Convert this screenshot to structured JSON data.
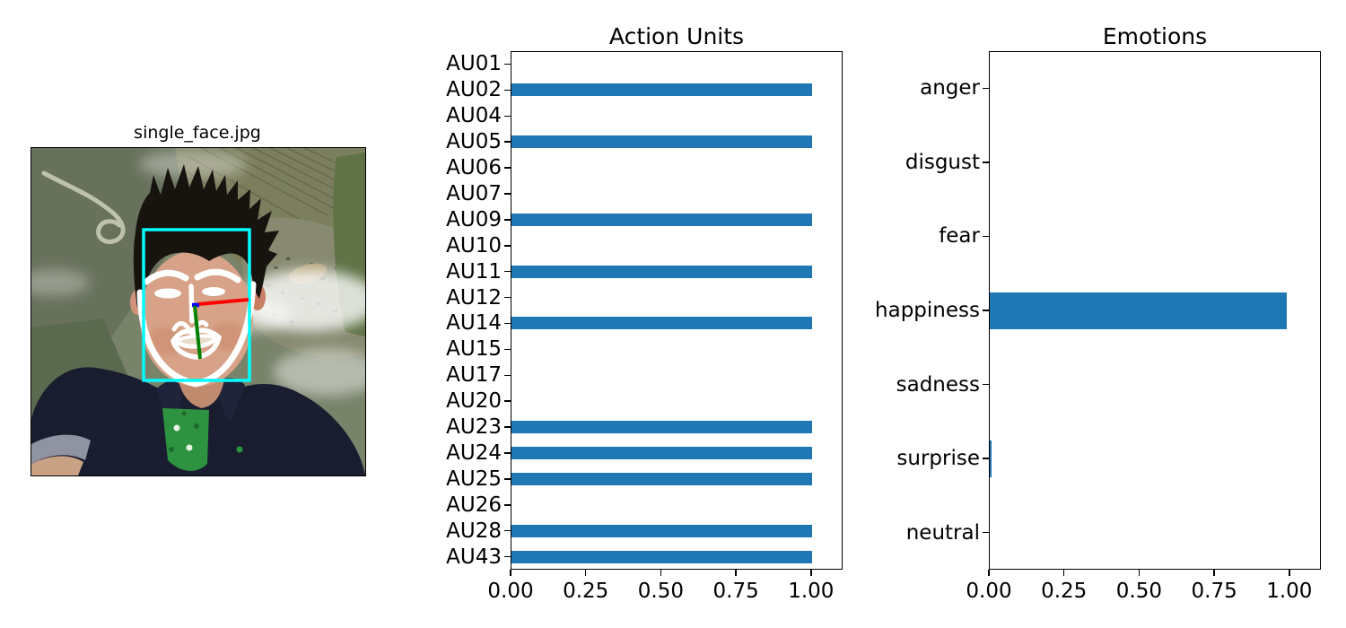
{
  "image_panel": {
    "title": "single_face.jpg",
    "overlay": {
      "bounding_box_color": "#00ffff",
      "landmark_color": "#ffffff",
      "pose_axis_x_color": "#ff0000",
      "pose_axis_y_color": "#008000",
      "pose_axis_z_color": "#0000ff"
    }
  },
  "chart_data": [
    {
      "type": "bar",
      "orientation": "horizontal",
      "title": "Action Units",
      "categories": [
        "AU01",
        "AU02",
        "AU04",
        "AU05",
        "AU06",
        "AU07",
        "AU09",
        "AU10",
        "AU11",
        "AU12",
        "AU14",
        "AU15",
        "AU17",
        "AU20",
        "AU23",
        "AU24",
        "AU25",
        "AU26",
        "AU28",
        "AU43"
      ],
      "values": [
        0,
        1,
        0,
        1,
        0,
        0,
        1,
        0,
        1,
        0,
        1,
        0,
        0,
        0,
        1,
        1,
        1,
        0,
        1,
        1
      ],
      "xticks": [
        "0.00",
        "0.25",
        "0.50",
        "0.75",
        "1.00"
      ],
      "xlim": [
        0,
        1.105
      ],
      "grid": false,
      "legend": null,
      "bar_color": "#1f77b4"
    },
    {
      "type": "bar",
      "orientation": "horizontal",
      "title": "Emotions",
      "categories": [
        "anger",
        "disgust",
        "fear",
        "happiness",
        "sadness",
        "surprise",
        "neutral"
      ],
      "values": [
        0,
        0,
        0,
        0.99,
        0,
        0.005,
        0
      ],
      "xticks": [
        "0.00",
        "0.25",
        "0.50",
        "0.75",
        "1.00"
      ],
      "xlim": [
        0,
        1.105
      ],
      "grid": false,
      "legend": null,
      "bar_color": "#1f77b4"
    }
  ]
}
